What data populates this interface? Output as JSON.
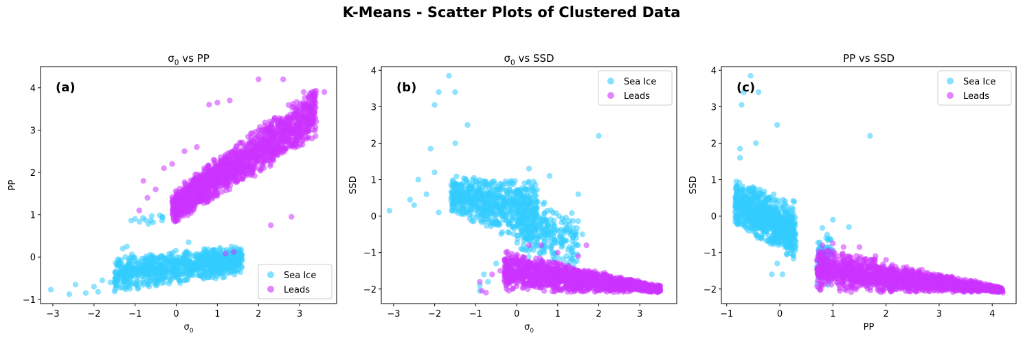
{
  "figure": {
    "title": "K-Means - Scatter Plots of Clustered Data"
  },
  "colors": {
    "sea_ice": "#33ccff",
    "leads": "#cc33ff"
  },
  "chart_data": [
    {
      "type": "scatter",
      "panel": "(a)",
      "title_prefix": "σ",
      "title_sub": "0",
      "title_suffix": " vs PP",
      "xlabel": "σ",
      "xlabel_sub": "0",
      "ylabel": "PP",
      "xlim": [
        -3.3,
        3.9
      ],
      "ylim": [
        -1.1,
        4.5
      ],
      "xticks": [
        -3,
        -2,
        -1,
        0,
        1,
        2,
        3
      ],
      "yticks": [
        -1,
        0,
        1,
        2,
        3,
        4
      ],
      "legend": {
        "position": "lower-right",
        "entries": [
          "Sea Ice",
          "Leads"
        ]
      },
      "series": [
        {
          "name": "Sea Ice",
          "color": "#33ccff",
          "alpha": 0.55,
          "clusters": [
            {
              "kind": "band",
              "x": [
                -1.5,
                1.6
              ],
              "yl0": -0.85,
              "yl1": -0.45,
              "yh0": 0.05,
              "yh1": 0.3,
              "n": 900
            },
            {
              "kind": "band",
              "x": [
                -1.1,
                -0.3
              ],
              "yl0": 0.75,
              "yl1": 0.75,
              "yh0": 1.0,
              "yh1": 1.0,
              "n": 12
            }
          ],
          "points": [
            [
              -3.05,
              -0.77
            ],
            [
              -2.6,
              -0.88
            ],
            [
              -2.45,
              -0.65
            ],
            [
              -2.2,
              -0.85
            ],
            [
              -2.0,
              -0.7
            ],
            [
              -1.8,
              -0.55
            ],
            [
              -1.6,
              -0.6
            ],
            [
              -1.9,
              -0.82
            ],
            [
              -1.3,
              0.2
            ],
            [
              -1.2,
              0.25
            ],
            [
              -1.0,
              0.9
            ],
            [
              0.3,
              0.35
            ],
            [
              1.3,
              -0.2
            ],
            [
              1.5,
              0.1
            ],
            [
              1.6,
              0.05
            ]
          ]
        },
        {
          "name": "Leads",
          "color": "#cc33ff",
          "alpha": 0.55,
          "clusters": [
            {
              "kind": "band",
              "x": [
                -0.1,
                3.4
              ],
              "yl0": 0.7,
              "yl1": 2.8,
              "yh0": 1.6,
              "yh1": 4.1,
              "n": 1500
            }
          ],
          "points": [
            [
              -0.8,
              1.8
            ],
            [
              -0.9,
              1.1
            ],
            [
              -0.7,
              1.4
            ],
            [
              -0.5,
              1.6
            ],
            [
              -0.3,
              2.1
            ],
            [
              -0.1,
              2.2
            ],
            [
              0.2,
              2.5
            ],
            [
              0.5,
              2.6
            ],
            [
              0.8,
              3.6
            ],
            [
              1.0,
              3.65
            ],
            [
              1.3,
              3.7
            ],
            [
              2.0,
              4.2
            ],
            [
              2.6,
              4.2
            ],
            [
              3.1,
              3.9
            ],
            [
              3.6,
              3.9
            ],
            [
              3.3,
              2.8
            ],
            [
              3.4,
              3.2
            ],
            [
              1.2,
              0.08
            ],
            [
              1.4,
              0.12
            ],
            [
              2.8,
              0.95
            ],
            [
              2.3,
              0.75
            ]
          ]
        }
      ]
    },
    {
      "type": "scatter",
      "panel": "(b)",
      "title_prefix": "σ",
      "title_sub": "0",
      "title_suffix": " vs SSD",
      "xlabel": "σ",
      "xlabel_sub": "0",
      "ylabel": "SSD",
      "xlim": [
        -3.3,
        3.9
      ],
      "ylim": [
        -2.4,
        4.1
      ],
      "xticks": [
        -3,
        -2,
        -1,
        0,
        1,
        2,
        3
      ],
      "yticks": [
        -2,
        -1,
        0,
        1,
        2,
        3,
        4
      ],
      "legend": {
        "position": "top-right",
        "entries": [
          "Sea Ice",
          "Leads"
        ]
      },
      "series": [
        {
          "name": "Sea Ice",
          "color": "#33ccff",
          "alpha": 0.55,
          "clusters": [
            {
              "kind": "band",
              "x": [
                -1.6,
                0.5
              ],
              "yl0": 0.0,
              "yl1": -0.9,
              "yh0": 1.1,
              "yh1": 1.1,
              "n": 650
            },
            {
              "kind": "band",
              "x": [
                0.0,
                1.5
              ],
              "yl0": -1.2,
              "yl1": -1.8,
              "yh0": 0.8,
              "yh1": 0.2,
              "n": 250
            }
          ],
          "points": [
            [
              -3.1,
              0.15
            ],
            [
              -2.6,
              0.45
            ],
            [
              -2.5,
              0.3
            ],
            [
              -2.4,
              1.0
            ],
            [
              -2.2,
              0.6
            ],
            [
              -2.1,
              1.85
            ],
            [
              -2.0,
              3.05
            ],
            [
              -1.9,
              3.4
            ],
            [
              -1.65,
              3.85
            ],
            [
              -1.5,
              3.4
            ],
            [
              -1.5,
              2.0
            ],
            [
              -1.2,
              2.5
            ],
            [
              -2.0,
              1.2
            ],
            [
              -1.9,
              0.1
            ],
            [
              -0.9,
              -1.9
            ],
            [
              -0.8,
              -1.6
            ],
            [
              -0.7,
              -1.8
            ],
            [
              -0.9,
              -2.05
            ],
            [
              -0.5,
              -1.3
            ],
            [
              -0.2,
              -1.4
            ],
            [
              2.0,
              2.2
            ],
            [
              1.6,
              -0.5
            ],
            [
              1.5,
              0.6
            ],
            [
              0.8,
              1.1
            ],
            [
              0.3,
              1.3
            ]
          ]
        },
        {
          "name": "Leads",
          "color": "#cc33ff",
          "alpha": 0.55,
          "clusters": [
            {
              "kind": "band",
              "x": [
                -0.3,
                3.5
              ],
              "yl0": -2.1,
              "yl1": -2.1,
              "yh0": -0.9,
              "yh1": -1.9,
              "n": 1500
            }
          ],
          "points": [
            [
              -0.9,
              -1.8
            ],
            [
              -0.85,
              -2.05
            ],
            [
              -0.75,
              -2.1
            ],
            [
              -0.6,
              -1.6
            ],
            [
              -0.4,
              -1.5
            ],
            [
              0.3,
              -0.8
            ],
            [
              0.6,
              -0.8
            ],
            [
              1.0,
              -1.0
            ],
            [
              1.7,
              -0.8
            ],
            [
              1.5,
              -1.1
            ],
            [
              3.5,
              -2.05
            ],
            [
              3.3,
              -2.0
            ]
          ]
        }
      ]
    },
    {
      "type": "scatter",
      "panel": "(c)",
      "title_prefix": "PP vs SSD",
      "title_sub": "",
      "title_suffix": "",
      "xlabel": "PP",
      "xlabel_sub": "",
      "ylabel": "SSD",
      "xlim": [
        -1.1,
        4.45
      ],
      "ylim": [
        -2.4,
        4.1
      ],
      "xticks": [
        -1,
        0,
        1,
        2,
        3,
        4
      ],
      "yticks": [
        -2,
        -1,
        0,
        1,
        2,
        3,
        4
      ],
      "legend": {
        "position": "top-right",
        "entries": [
          "Sea Ice",
          "Leads"
        ]
      },
      "series": [
        {
          "name": "Sea Ice",
          "color": "#33ccff",
          "alpha": 0.55,
          "clusters": [
            {
              "kind": "band",
              "x": [
                -0.85,
                0.3
              ],
              "yl0": -0.3,
              "yl1": -1.3,
              "yh0": 1.1,
              "yh1": 0.4,
              "n": 800
            },
            {
              "kind": "band",
              "x": [
                0.7,
                1.0
              ],
              "yl0": -2.0,
              "yl1": -2.0,
              "yh0": -0.3,
              "yh1": -0.3,
              "n": 80
            }
          ],
          "points": [
            [
              -0.75,
              1.85
            ],
            [
              -0.75,
              1.6
            ],
            [
              -0.72,
              3.05
            ],
            [
              -0.68,
              3.4
            ],
            [
              -0.55,
              3.85
            ],
            [
              -0.4,
              3.4
            ],
            [
              -0.45,
              2.0
            ],
            [
              -0.05,
              2.5
            ],
            [
              1.7,
              2.2
            ],
            [
              1.3,
              -0.3
            ],
            [
              1.0,
              -0.1
            ],
            [
              -0.15,
              -1.6
            ],
            [
              0.05,
              -1.6
            ],
            [
              -0.05,
              -1.3
            ],
            [
              0.3,
              -0.8
            ]
          ]
        },
        {
          "name": "Leads",
          "color": "#cc33ff",
          "alpha": 0.55,
          "clusters": [
            {
              "kind": "band",
              "x": [
                0.7,
                4.2
              ],
              "yl0": -2.1,
              "yl1": -2.1,
              "yh0": -0.8,
              "yh1": -1.95,
              "n": 1600
            }
          ],
          "points": [
            [
              0.8,
              -0.8
            ],
            [
              1.0,
              -0.75
            ],
            [
              1.2,
              -0.85
            ],
            [
              1.5,
              -0.85
            ],
            [
              1.8,
              -1.1
            ],
            [
              2.0,
              -1.2
            ],
            [
              2.6,
              -1.55
            ],
            [
              2.9,
              -1.6
            ],
            [
              4.1,
              -2.0
            ],
            [
              4.2,
              -2.1
            ]
          ]
        }
      ]
    }
  ]
}
